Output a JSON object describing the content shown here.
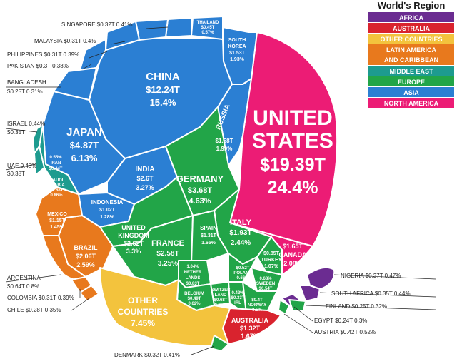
{
  "chart_data": {
    "type": "voronoi-treemap",
    "legend": {
      "title": "World's Region",
      "items": [
        {
          "name": "AFRICA",
          "color": "#6b2c91"
        },
        {
          "name": "AUSTRALIA",
          "color": "#d9232e"
        },
        {
          "name": "OTHER COUNTRIES",
          "color": "#f3c33d"
        },
        {
          "name": "LATIN AMERICA AND CARIBBEAN",
          "color": "#e8791d"
        },
        {
          "name": "MIDDLE EAST",
          "color": "#1d9b8f"
        },
        {
          "name": "EUROPE",
          "color": "#22a548"
        },
        {
          "name": "ASIA",
          "color": "#2b7fd3"
        },
        {
          "name": "NORTH AMERICA",
          "color": "#ec1c75"
        }
      ]
    },
    "countries": [
      {
        "name": "UNITED STATES",
        "region": "NORTH AMERICA",
        "gdp": "$19.39T",
        "share": "24.4%"
      },
      {
        "name": "CANADA",
        "region": "NORTH AMERICA",
        "gdp": "$1.65T",
        "share": "2.08%"
      },
      {
        "name": "CHINA",
        "region": "ASIA",
        "gdp": "$12.24T",
        "share": "15.4%"
      },
      {
        "name": "JAPAN",
        "region": "ASIA",
        "gdp": "$4.87T",
        "share": "6.13%"
      },
      {
        "name": "INDIA",
        "region": "ASIA",
        "gdp": "$2.6T",
        "share": "3.27%"
      },
      {
        "name": "RUSSIA",
        "region": "ASIA",
        "gdp": "$1.58T",
        "share": "1.99%"
      },
      {
        "name": "SOUTH KOREA",
        "region": "ASIA",
        "gdp": "$1.53T",
        "share": "1.93%"
      },
      {
        "name": "INDONESIA",
        "region": "ASIA",
        "gdp": "$1.02T",
        "share": "1.28%"
      },
      {
        "name": "THAILAND",
        "region": "ASIA",
        "gdp": "$0.45T",
        "share": "0.57%"
      },
      {
        "name": "SINGAPORE",
        "region": "ASIA",
        "gdp": "$0.32T",
        "share": "0.41%"
      },
      {
        "name": "MALAYSIA",
        "region": "ASIA",
        "gdp": "$0.31T",
        "share": "0.4%"
      },
      {
        "name": "PHILIPPINES",
        "region": "ASIA",
        "gdp": "$0.31T",
        "share": "0.39%"
      },
      {
        "name": "PAKISTAN",
        "region": "ASIA",
        "gdp": "$0.3T",
        "share": "0.38%"
      },
      {
        "name": "BANGLADESH",
        "region": "ASIA",
        "gdp": "$0.25T",
        "share": "0.31%"
      },
      {
        "name": "GERMANY",
        "region": "EUROPE",
        "gdp": "$3.68T",
        "share": "4.63%"
      },
      {
        "name": "UNITED KINGDOM",
        "region": "EUROPE",
        "gdp": "$2.62T",
        "share": "3.3%"
      },
      {
        "name": "FRANCE",
        "region": "EUROPE",
        "gdp": "$2.58T",
        "share": "3.25%"
      },
      {
        "name": "ITALY",
        "region": "EUROPE",
        "gdp": "$1.93T",
        "share": "2.44%"
      },
      {
        "name": "SPAIN",
        "region": "EUROPE",
        "gdp": "$1.31T",
        "share": "1.65%"
      },
      {
        "name": "NETHERLANDS",
        "region": "EUROPE",
        "gdp": "$0.83T",
        "share": "1.04%"
      },
      {
        "name": "TURKEY",
        "region": "EUROPE",
        "gdp": "$0.85T",
        "share": "1.07%"
      },
      {
        "name": "SWITZERLAND",
        "region": "EUROPE",
        "gdp": "$0.68T",
        "share": "0.85%"
      },
      {
        "name": "SWEDEN",
        "region": "EUROPE",
        "gdp": "$0.54T",
        "share": "0.68%"
      },
      {
        "name": "POLAND",
        "region": "EUROPE",
        "gdp": "$0.52T",
        "share": "0.66%"
      },
      {
        "name": "BELGIUM",
        "region": "EUROPE",
        "gdp": "$0.49T",
        "share": "0.62%"
      },
      {
        "name": "NORWAY",
        "region": "EUROPE",
        "gdp": "$0.4T",
        "share": "0.5%"
      },
      {
        "name": "IRELAND",
        "region": "EUROPE",
        "gdp": "$0.33T",
        "share": "0.42%"
      },
      {
        "name": "AUSTRIA",
        "region": "EUROPE",
        "gdp": "$0.42T",
        "share": "0.52%"
      },
      {
        "name": "DENMARK",
        "region": "EUROPE",
        "gdp": "$0.32T",
        "share": "0.41%"
      },
      {
        "name": "FINLAND",
        "region": "EUROPE",
        "gdp": "$0.25T",
        "share": "0.32%"
      },
      {
        "name": "BRAZIL",
        "region": "LATIN AMERICA AND CARIBBEAN",
        "gdp": "$2.06T",
        "share": "2.59%"
      },
      {
        "name": "MEXICO",
        "region": "LATIN AMERICA AND CARIBBEAN",
        "gdp": "$1.15T",
        "share": "1.45%"
      },
      {
        "name": "ARGENTINA",
        "region": "LATIN AMERICA AND CARIBBEAN",
        "gdp": "$0.64T",
        "share": "0.8%"
      },
      {
        "name": "COLOMBIA",
        "region": "LATIN AMERICA AND CARIBBEAN",
        "gdp": "$0.31T",
        "share": "0.39%"
      },
      {
        "name": "CHILE",
        "region": "LATIN AMERICA AND CARIBBEAN",
        "gdp": "$0.28T",
        "share": "0.35%"
      },
      {
        "name": "SAUDI ARABIA",
        "region": "MIDDLE EAST",
        "gdp": "$0.68T",
        "share": "0.86%"
      },
      {
        "name": "IRAN",
        "region": "MIDDLE EAST",
        "gdp": "$0.44T",
        "share": "0.55%"
      },
      {
        "name": "UAE",
        "region": "MIDDLE EAST",
        "gdp": "$0.38T",
        "share": "0.48%"
      },
      {
        "name": "ISRAEL",
        "region": "MIDDLE EAST",
        "gdp": "$0.35T",
        "share": "0.44%"
      },
      {
        "name": "NIGERIA",
        "region": "AFRICA",
        "gdp": "$0.37T",
        "share": "0.47%"
      },
      {
        "name": "SOUTH AFRICA",
        "region": "AFRICA",
        "gdp": "$0.35T",
        "share": "0.44%"
      },
      {
        "name": "EGYPT",
        "region": "AFRICA",
        "gdp": "$0.24T",
        "share": "0.3%"
      },
      {
        "name": "AUSTRALIA",
        "region": "AUSTRALIA",
        "gdp": "$1.32T",
        "share": "1.67%"
      },
      {
        "name": "OTHER COUNTRIES",
        "region": "OTHER COUNTRIES",
        "gdp": "",
        "share": "7.45%"
      }
    ],
    "cell_labels": [
      {
        "key": "us",
        "lines": [
          "UNITED",
          "STATES",
          "$19.39T",
          "24.4%"
        ]
      },
      {
        "key": "china",
        "lines": [
          "CHINA",
          "$12.24T",
          "15.4%"
        ]
      },
      {
        "key": "japan",
        "lines": [
          "JAPAN",
          "$4.87T",
          "6.13%"
        ]
      },
      {
        "key": "india",
        "lines": [
          "INDIA",
          "$2.6T",
          "3.27%"
        ]
      },
      {
        "key": "russia",
        "lines": [
          "RUSSIA"
        ]
      },
      {
        "key": "russia_val",
        "lines": [
          "$1.58T",
          "1.99%"
        ]
      },
      {
        "key": "skorea",
        "lines": [
          "SOUTH",
          "KOREA",
          "$1.53T",
          "1.93%"
        ]
      },
      {
        "key": "thailand",
        "lines": [
          "THAILAND",
          "$0.45T",
          "0.57%"
        ]
      },
      {
        "key": "indonesia",
        "lines": [
          "INDONESIA",
          "$1.02T",
          "1.28%"
        ]
      },
      {
        "key": "germany",
        "lines": [
          "GERMANY",
          "$3.68T",
          "4.63%"
        ]
      },
      {
        "key": "uk",
        "lines": [
          "UNITED",
          "KINGDOM",
          "$2.62T",
          "3.3%"
        ]
      },
      {
        "key": "france",
        "lines": [
          "FRANCE",
          "$2.58T",
          "3.25%"
        ]
      },
      {
        "key": "italy",
        "lines": [
          "ITALY",
          "$1.93T",
          "2.44%"
        ]
      },
      {
        "key": "spain",
        "lines": [
          "SPAIN",
          "$1.31T",
          "1.65%"
        ]
      },
      {
        "key": "netherlands",
        "lines": [
          "1.04%",
          "NETHER",
          "LANDS",
          "$0.83T"
        ]
      },
      {
        "key": "belgium",
        "lines": [
          "BELGIUM",
          "$0.49T",
          "0.62%"
        ]
      },
      {
        "key": "switzerland",
        "lines": [
          "SWITZER",
          "LAND",
          "$0.68T",
          "0.85%"
        ]
      },
      {
        "key": "poland",
        "lines": [
          "$0.52T",
          "POLAND",
          "0.66%"
        ]
      },
      {
        "key": "turkey",
        "lines": [
          "$0.85T",
          "TURKEY",
          "1.07%"
        ]
      },
      {
        "key": "sweden",
        "lines": [
          "0.68%",
          "SWEDEN",
          "$0.54T"
        ]
      },
      {
        "key": "ireland",
        "lines": [
          "0.42%",
          "$0.33T",
          "IRL"
        ]
      },
      {
        "key": "norway",
        "lines": [
          "$0.4T",
          "NORWAY",
          "0.5%"
        ]
      },
      {
        "key": "canada",
        "lines": [
          "$1.65T",
          "CANADA",
          "2.08%"
        ]
      },
      {
        "key": "brazil",
        "lines": [
          "BRAZIL",
          "$2.06T",
          "2.59%"
        ]
      },
      {
        "key": "mexico",
        "lines": [
          "MEXICO",
          "$1.15T",
          "1.45%"
        ]
      },
      {
        "key": "iran",
        "lines": [
          "0.55%",
          "IRAN",
          "$0.44T"
        ]
      },
      {
        "key": "saudi",
        "lines": [
          "SAUDI",
          "ARABIA",
          "$0.68T",
          "0.86%"
        ]
      },
      {
        "key": "other",
        "lines": [
          "OTHER",
          "COUNTRIES",
          "7.45%"
        ]
      },
      {
        "key": "australia",
        "lines": [
          "AUSTRALIA",
          "$1.32T",
          "1.67%"
        ]
      }
    ],
    "callouts": [
      {
        "key": "singapore",
        "text": "SINGAPORE $0.32T  0.41%"
      },
      {
        "key": "malaysia",
        "text": "MALAYSIA $0.31T  0.4%"
      },
      {
        "key": "philippines",
        "text": "PHILIPPINES $0.31T  0.39%"
      },
      {
        "key": "pakistan",
        "text": "PAKISTAN $0.3T  0.38%"
      },
      {
        "key": "bangladesh1",
        "text": "BANGLADESH"
      },
      {
        "key": "bangladesh2",
        "text": "$0.25T  0.31%"
      },
      {
        "key": "israel1",
        "text": "ISRAEL 0.44%"
      },
      {
        "key": "israel2",
        "text": "$0.35T"
      },
      {
        "key": "uae1",
        "text": "UAE 0.48%"
      },
      {
        "key": "uae2",
        "text": "$0.38T"
      },
      {
        "key": "argentina1",
        "text": "ARGENTINA"
      },
      {
        "key": "argentina2",
        "text": "$0.64T  0.8%"
      },
      {
        "key": "colombia",
        "text": "COLOMBIA $0.31T  0.39%"
      },
      {
        "key": "chile",
        "text": "CHILE $0.28T  0.35%"
      },
      {
        "key": "denmark",
        "text": "DENMARK $0.32T  0.41%"
      },
      {
        "key": "nigeria",
        "text": "NIGERIA $0.37T  0.47%"
      },
      {
        "key": "southafrica",
        "text": "SOUTH AFRICA $0.35T  0.44%"
      },
      {
        "key": "finland",
        "text": "FINLAND $0.25T  0.32%"
      },
      {
        "key": "egypt",
        "text": "EGYPT $0.24T  0.3%"
      },
      {
        "key": "austria",
        "text": "AUSTRIA $0.42T  0.52%"
      }
    ]
  }
}
